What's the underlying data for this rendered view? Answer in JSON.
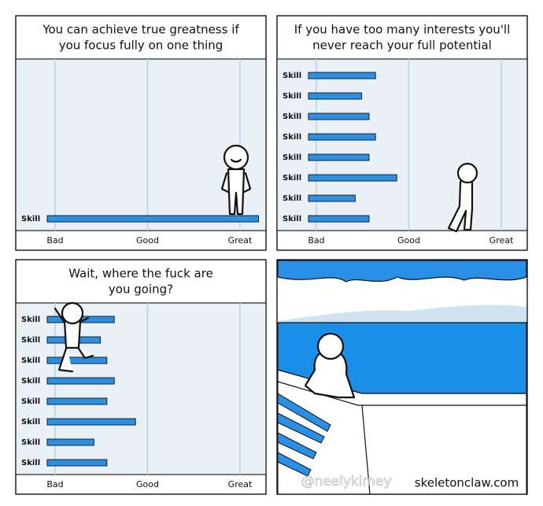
{
  "panels": [
    {
      "caption_lines": [
        "You can achieve true greatness if",
        "you focus fully on one thing"
      ],
      "chart": {
        "type": "bar",
        "row_labels": [
          "Skill"
        ],
        "values": [
          2.2
        ],
        "xticks": [
          {
            "value": 0,
            "label": "Bad"
          },
          {
            "value": 1,
            "label": "Good"
          },
          {
            "value": 2,
            "label": "Great"
          }
        ]
      }
    },
    {
      "caption_lines": [
        "If you have too many interests you'll",
        "never reach your full potential"
      ],
      "chart": {
        "type": "bar",
        "row_labels": [
          "Skill",
          "Skill",
          "Skill",
          "Skill",
          "Skill",
          "Skill",
          "Skill",
          "Skill"
        ],
        "values": [
          0.64,
          0.49,
          0.57,
          0.64,
          0.57,
          0.87,
          0.42,
          0.57
        ],
        "xticks": [
          {
            "value": 0,
            "label": "Bad"
          },
          {
            "value": 1,
            "label": "Good"
          },
          {
            "value": 2,
            "label": "Great"
          }
        ]
      }
    },
    {
      "caption_lines": [
        "Wait, where the fuck are",
        "you going?"
      ],
      "chart": {
        "type": "bar",
        "row_labels": [
          "Skill",
          "Skill",
          "Skill",
          "Skill",
          "Skill",
          "Skill",
          "Skill",
          "Skill"
        ],
        "values": [
          0.64,
          0.49,
          0.56,
          0.64,
          0.56,
          0.87,
          0.42,
          0.56
        ],
        "xticks": [
          {
            "value": 0,
            "label": "Bad"
          },
          {
            "value": 1,
            "label": "Good"
          },
          {
            "value": 2,
            "label": "Great"
          }
        ]
      }
    }
  ],
  "signature": "skeletonclaw.com",
  "watermark": "@neelykimey"
}
